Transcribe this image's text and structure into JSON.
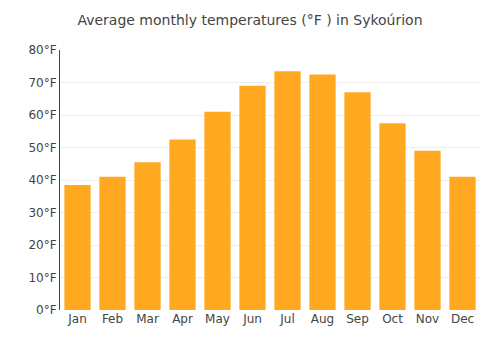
{
  "chart_data": {
    "type": "bar",
    "title": "Average monthly temperatures (°F ) in Sykoúrion",
    "categories": [
      "Jan",
      "Feb",
      "Mar",
      "Apr",
      "May",
      "Jun",
      "Jul",
      "Aug",
      "Sep",
      "Oct",
      "Nov",
      "Dec"
    ],
    "values": [
      38.5,
      41,
      45.5,
      52.5,
      61,
      69,
      73.5,
      72.5,
      67,
      57.5,
      49,
      41
    ],
    "color": "#FFA820",
    "ylim": [
      0,
      80
    ],
    "yticks": [
      {
        "value": 0,
        "label": "0°F"
      },
      {
        "value": 10,
        "label": "10°F"
      },
      {
        "value": 20,
        "label": "20°F"
      },
      {
        "value": 30,
        "label": "30°F"
      },
      {
        "value": 40,
        "label": "40°F"
      },
      {
        "value": 50,
        "label": "50°F"
      },
      {
        "value": 60,
        "label": "60°F"
      },
      {
        "value": 70,
        "label": "70°F"
      },
      {
        "value": 80,
        "label": "80°F"
      }
    ],
    "grid": true
  }
}
